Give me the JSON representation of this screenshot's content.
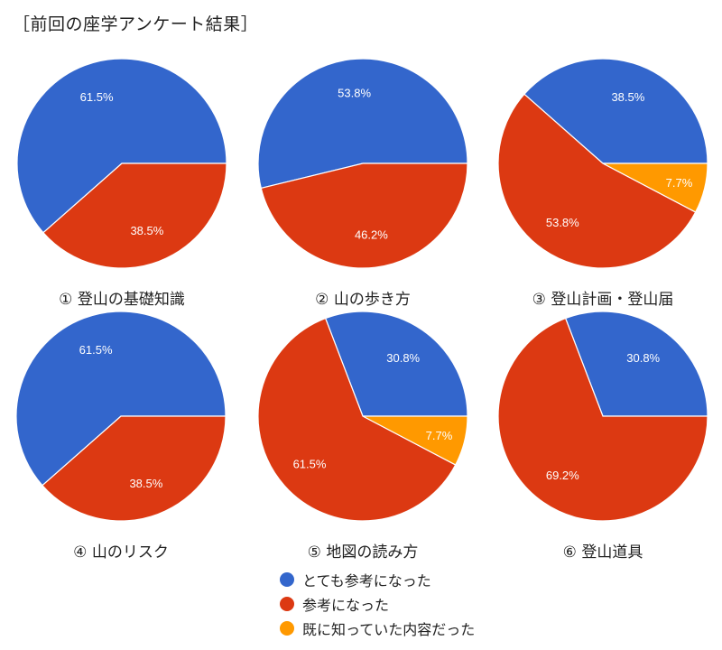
{
  "title": "［前回の座学アンケート結果］",
  "colors": {
    "very_useful": "#3366cc",
    "useful": "#dc3912",
    "already_known": "#ff9900"
  },
  "legend": [
    {
      "key": "very_useful",
      "label": "とても参考になった"
    },
    {
      "key": "useful",
      "label": "参考になった"
    },
    {
      "key": "already_known",
      "label": "既に知っていた内容だった"
    }
  ],
  "chart_data": [
    {
      "type": "pie",
      "title": "①  登山の基礎知識",
      "slices": [
        {
          "key": "very_useful",
          "value": 61.5,
          "label": "61.5%"
        },
        {
          "key": "useful",
          "value": 38.5,
          "label": "38.5%"
        }
      ]
    },
    {
      "type": "pie",
      "title": "②  山の歩き方",
      "slices": [
        {
          "key": "very_useful",
          "value": 53.8,
          "label": "53.8%"
        },
        {
          "key": "useful",
          "value": 46.2,
          "label": "46.2%"
        }
      ]
    },
    {
      "type": "pie",
      "title": "③  登山計画・登山届",
      "slices": [
        {
          "key": "very_useful",
          "value": 38.5,
          "label": "38.5%"
        },
        {
          "key": "useful",
          "value": 53.8,
          "label": "53.8%"
        },
        {
          "key": "already_known",
          "value": 7.7,
          "label": "7.7%"
        }
      ]
    },
    {
      "type": "pie",
      "title": "④  山のリスク",
      "slices": [
        {
          "key": "very_useful",
          "value": 61.5,
          "label": "61.5%"
        },
        {
          "key": "useful",
          "value": 38.5,
          "label": "38.5%"
        }
      ]
    },
    {
      "type": "pie",
      "title": "⑤  地図の読み方",
      "slices": [
        {
          "key": "very_useful",
          "value": 30.8,
          "label": "30.8%"
        },
        {
          "key": "useful",
          "value": 61.5,
          "label": "61.5%"
        },
        {
          "key": "already_known",
          "value": 7.7,
          "label": "7.7%"
        }
      ]
    },
    {
      "type": "pie",
      "title": "⑥  登山道具",
      "slices": [
        {
          "key": "very_useful",
          "value": 30.8,
          "label": "30.8%"
        },
        {
          "key": "useful",
          "value": 69.2,
          "label": "69.2%"
        }
      ]
    }
  ]
}
